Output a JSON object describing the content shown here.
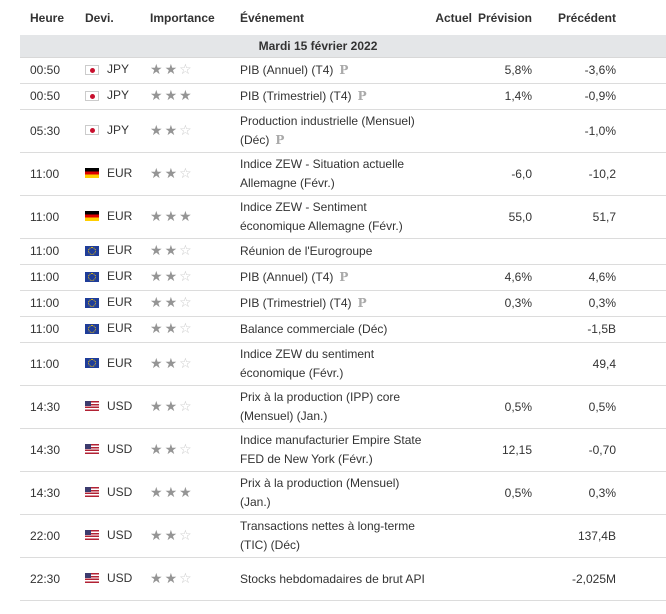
{
  "headers": {
    "time": "Heure",
    "currency": "Devi.",
    "importance": "Importance",
    "event": "Événement",
    "actual": "Actuel",
    "forecast": "Prévision",
    "previous": "Précédent"
  },
  "date_label": "Mardi 15 février 2022",
  "star_on": "★",
  "star_off": "☆",
  "p_mark": "P",
  "rows": [
    {
      "time": "00:50",
      "flag": "jp",
      "currency": "JPY",
      "stars": 2,
      "event": "PIB (Annuel) (T4)",
      "p": true,
      "actual": "",
      "forecast": "5,8%",
      "previous": "-3,6%"
    },
    {
      "time": "00:50",
      "flag": "jp",
      "currency": "JPY",
      "stars": 3,
      "event": "PIB (Trimestriel) (T4)",
      "p": true,
      "actual": "",
      "forecast": "1,4%",
      "previous": "-0,9%"
    },
    {
      "time": "05:30",
      "flag": "jp",
      "currency": "JPY",
      "stars": 2,
      "event": "Production industrielle (Mensuel) (Déc)",
      "p": true,
      "actual": "",
      "forecast": "",
      "previous": "-1,0%"
    },
    {
      "time": "11:00",
      "flag": "de",
      "currency": "EUR",
      "stars": 2,
      "event": "Indice ZEW - Situation actuelle Allemagne (Févr.)",
      "p": false,
      "actual": "",
      "forecast": "-6,0",
      "previous": "-10,2"
    },
    {
      "time": "11:00",
      "flag": "de",
      "currency": "EUR",
      "stars": 3,
      "event": "Indice ZEW - Sentiment économique Allemagne (Févr.)",
      "p": false,
      "actual": "",
      "forecast": "55,0",
      "previous": "51,7"
    },
    {
      "time": "11:00",
      "flag": "eu",
      "currency": "EUR",
      "stars": 2,
      "event": "Réunion de l'Eurogroupe",
      "p": false,
      "actual": "",
      "forecast": "",
      "previous": ""
    },
    {
      "time": "11:00",
      "flag": "eu",
      "currency": "EUR",
      "stars": 2,
      "event": "PIB (Annuel) (T4)",
      "p": true,
      "actual": "",
      "forecast": "4,6%",
      "previous": "4,6%"
    },
    {
      "time": "11:00",
      "flag": "eu",
      "currency": "EUR",
      "stars": 2,
      "event": "PIB (Trimestriel) (T4)",
      "p": true,
      "actual": "",
      "forecast": "0,3%",
      "previous": "0,3%"
    },
    {
      "time": "11:00",
      "flag": "eu",
      "currency": "EUR",
      "stars": 2,
      "event": "Balance commerciale (Déc)",
      "p": false,
      "actual": "",
      "forecast": "",
      "previous": "-1,5B"
    },
    {
      "time": "11:00",
      "flag": "eu",
      "currency": "EUR",
      "stars": 2,
      "event": "Indice ZEW du sentiment économique (Févr.)",
      "p": false,
      "actual": "",
      "forecast": "",
      "previous": "49,4"
    },
    {
      "time": "14:30",
      "flag": "us",
      "currency": "USD",
      "stars": 2,
      "event": "Prix à la production (IPP) core (Mensuel) (Jan.)",
      "p": false,
      "actual": "",
      "forecast": "0,5%",
      "previous": "0,5%"
    },
    {
      "time": "14:30",
      "flag": "us",
      "currency": "USD",
      "stars": 2,
      "event": "Indice manufacturier Empire State FED de New York (Févr.)",
      "p": false,
      "actual": "",
      "forecast": "12,15",
      "previous": "-0,70"
    },
    {
      "time": "14:30",
      "flag": "us",
      "currency": "USD",
      "stars": 3,
      "event": "Prix à la production (Mensuel) (Jan.)",
      "p": false,
      "actual": "",
      "forecast": "0,5%",
      "previous": "0,3%"
    },
    {
      "time": "22:00",
      "flag": "us",
      "currency": "USD",
      "stars": 2,
      "event": "Transactions nettes à long-terme (TIC) (Déc)",
      "p": false,
      "actual": "",
      "forecast": "",
      "previous": "137,4B"
    },
    {
      "time": "22:30",
      "flag": "us",
      "currency": "USD",
      "stars": 2,
      "event": "Stocks hebdomadaires de brut API",
      "p": false,
      "actual": "",
      "forecast": "",
      "previous": "-2,025M"
    }
  ]
}
